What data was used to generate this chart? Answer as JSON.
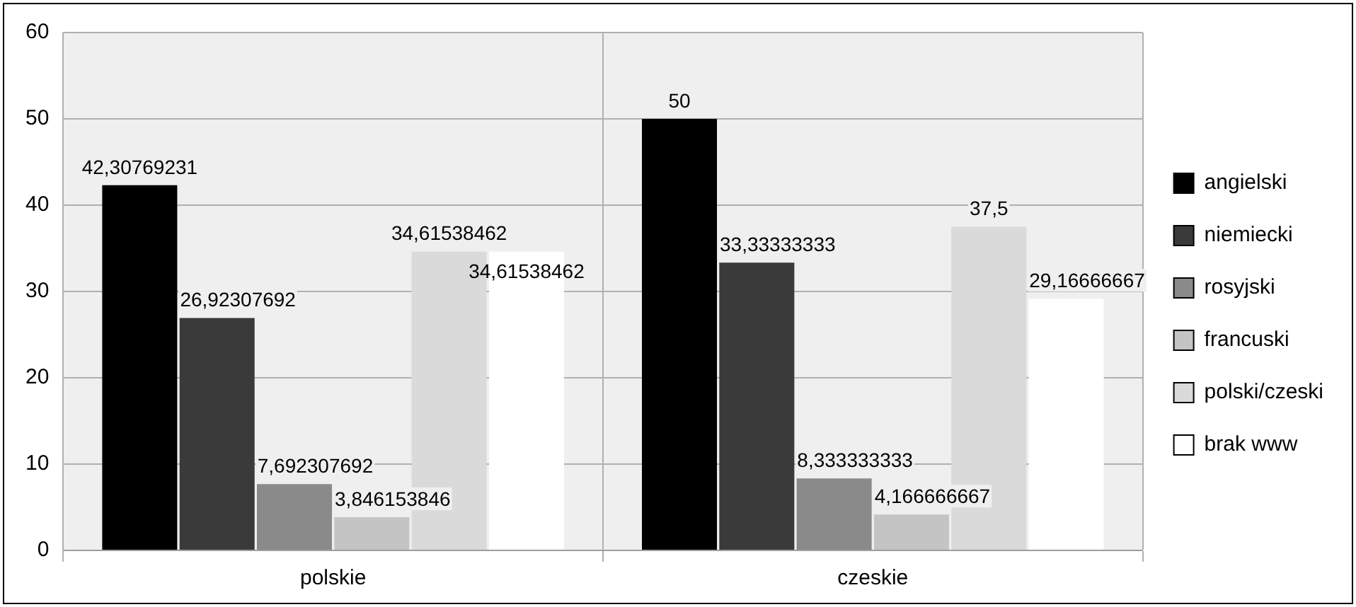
{
  "chart_data": {
    "type": "bar",
    "categories": [
      "polskie",
      "czeskie"
    ],
    "series": [
      {
        "name": "angielski",
        "color": "#000000",
        "values": [
          42.30769231,
          50
        ],
        "value_labels": [
          "42,30769231",
          "50"
        ]
      },
      {
        "name": "niemiecki",
        "color": "#3a3a3a",
        "values": [
          26.92307692,
          33.33333333
        ],
        "value_labels": [
          "26,92307692",
          "33,33333333"
        ]
      },
      {
        "name": "rosyjski",
        "color": "#8a8a8a",
        "values": [
          7.692307692,
          8.333333333
        ],
        "value_labels": [
          "7,692307692",
          "8,333333333"
        ]
      },
      {
        "name": "francuski",
        "color": "#c4c4c4",
        "values": [
          3.846153846,
          4.166666667
        ],
        "value_labels": [
          "3,846153846",
          "4,166666667"
        ]
      },
      {
        "name": "polski/czeski",
        "color": "#dadada",
        "values": [
          34.61538462,
          37.5
        ],
        "value_labels": [
          "34,61538462",
          "37,5"
        ]
      },
      {
        "name": "brak www",
        "color": "#ffffff",
        "values": [
          34.61538462,
          29.16666667
        ],
        "value_labels": [
          "34,61538462",
          "29,16666667"
        ]
      }
    ],
    "ylim": [
      0,
      60
    ],
    "yticks": [
      0,
      10,
      20,
      30,
      40,
      50,
      60
    ],
    "grid": true,
    "legend": "right"
  }
}
